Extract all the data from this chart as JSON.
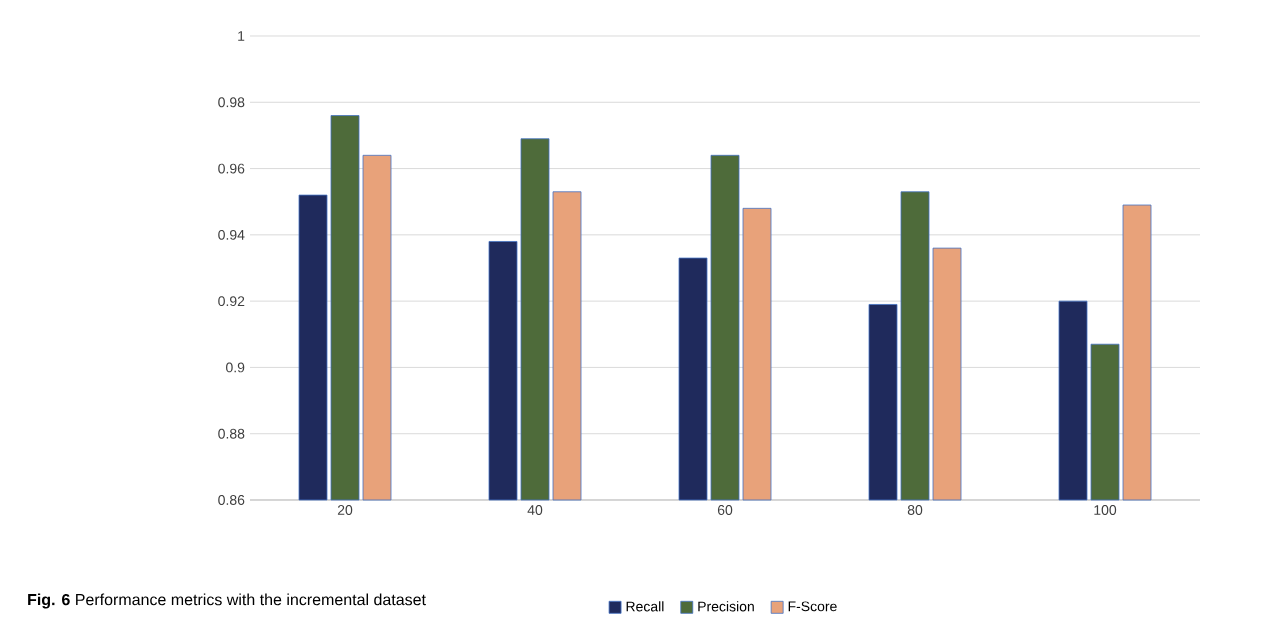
{
  "chart_data": {
    "type": "bar",
    "title": "**Fig. 6** Performance metrics with the incremental dataset",
    "categories": [
      "20",
      "40",
      "60",
      "80",
      "100"
    ],
    "series": [
      {
        "name": "Recall",
        "color": "#1f2a5c",
        "values": [
          0.952,
          0.938,
          0.933,
          0.919,
          0.92
        ]
      },
      {
        "name": "Precision",
        "color": "#4e6b3a",
        "values": [
          0.976,
          0.969,
          0.964,
          0.953,
          0.907
        ]
      },
      {
        "name": "F-Score",
        "color": "#e8a27a",
        "values": [
          0.964,
          0.953,
          0.948,
          0.936,
          0.949
        ]
      }
    ],
    "ylim": [
      0.86,
      1
    ],
    "yticks": [
      0.86,
      0.88,
      0.9,
      0.92,
      0.94,
      0.96,
      0.98,
      1
    ],
    "grid": "y",
    "legend": "bottom"
  }
}
